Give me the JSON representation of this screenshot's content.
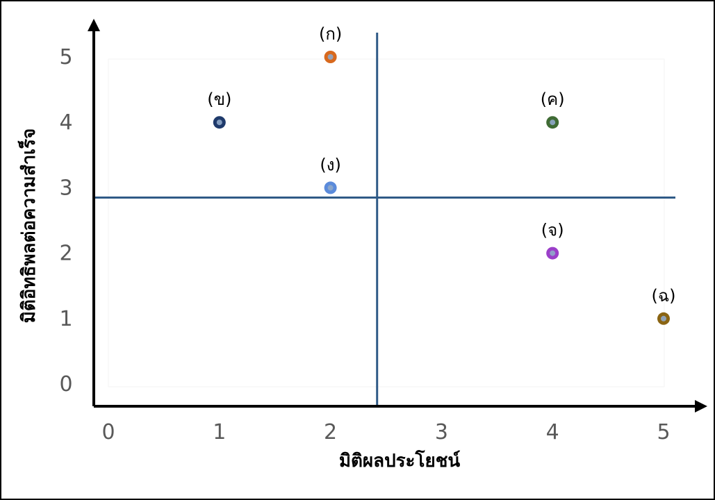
{
  "chart_data": {
    "type": "scatter",
    "xlabel": "มิติผลประโยชน์",
    "ylabel": "มิติอิทธิพลต่อความสำเร็จ",
    "xlim": [
      0,
      5
    ],
    "ylim": [
      0,
      5
    ],
    "x_ticks": [
      "0",
      "1",
      "2",
      "3",
      "4",
      "5"
    ],
    "y_ticks": [
      "0",
      "1",
      "2",
      "3",
      "4",
      "5"
    ],
    "grid": false,
    "reference_lines": {
      "vertical_x": 2.42,
      "horizontal_y": 2.85,
      "color": "#2F5A87"
    },
    "points": [
      {
        "label": "(ก)",
        "x": 2,
        "y": 5,
        "color": "#D8691E"
      },
      {
        "label": "(ข)",
        "x": 1,
        "y": 4,
        "color": "#1F3A6B"
      },
      {
        "label": "(ค)",
        "x": 4,
        "y": 4,
        "color": "#3F6B34"
      },
      {
        "label": "(ง)",
        "x": 2,
        "y": 3,
        "color": "#5B8BDB"
      },
      {
        "label": "(จ)",
        "x": 4,
        "y": 2,
        "color": "#9B3FC9"
      },
      {
        "label": "(ฉ)",
        "x": 5,
        "y": 1,
        "color": "#8A6412"
      }
    ]
  }
}
